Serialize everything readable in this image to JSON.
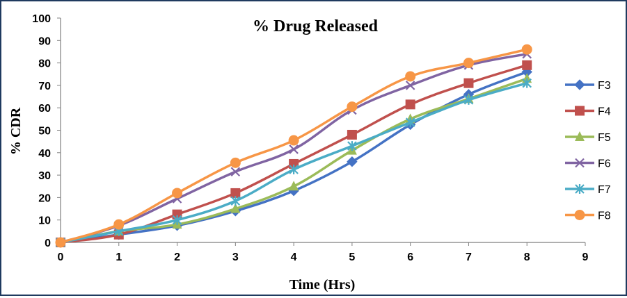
{
  "chart_data": {
    "type": "line",
    "title": "% Drug Released",
    "xlabel": "Time (Hrs)",
    "ylabel": "% CDR",
    "x": [
      0,
      1,
      2,
      3,
      4,
      5,
      6,
      7,
      8
    ],
    "xlim": [
      0,
      9
    ],
    "ylim": [
      0,
      100
    ],
    "xticks": [
      0,
      1,
      2,
      3,
      4,
      5,
      6,
      7,
      8,
      9
    ],
    "yticks": [
      0,
      10,
      20,
      30,
      40,
      50,
      60,
      70,
      80,
      90,
      100
    ],
    "grid": false,
    "legend": "right",
    "series": [
      {
        "name": "F3",
        "color": "#4472C4",
        "marker": "diamond",
        "values": [
          0,
          3.5,
          7.5,
          14,
          23,
          36,
          52.5,
          66,
          76
        ]
      },
      {
        "name": "F4",
        "color": "#C0504D",
        "marker": "square",
        "values": [
          0,
          3.5,
          12.5,
          22,
          35,
          48,
          61.5,
          71,
          79
        ]
      },
      {
        "name": "F5",
        "color": "#9BBB59",
        "marker": "triangle",
        "values": [
          0,
          5,
          8,
          15,
          25,
          41,
          55,
          64,
          73
        ]
      },
      {
        "name": "F6",
        "color": "#8064A2",
        "marker": "x",
        "values": [
          0,
          7.5,
          19.5,
          31.5,
          41.5,
          59,
          70,
          79,
          84
        ]
      },
      {
        "name": "F7",
        "color": "#4BACC6",
        "marker": "asterisk",
        "values": [
          0,
          5,
          10,
          18.5,
          32.5,
          43,
          53.5,
          63.5,
          71
        ]
      },
      {
        "name": "F8",
        "color": "#F79646",
        "marker": "circle",
        "values": [
          0,
          8,
          22,
          35.5,
          45.5,
          60.5,
          74,
          80,
          86
        ]
      }
    ]
  }
}
